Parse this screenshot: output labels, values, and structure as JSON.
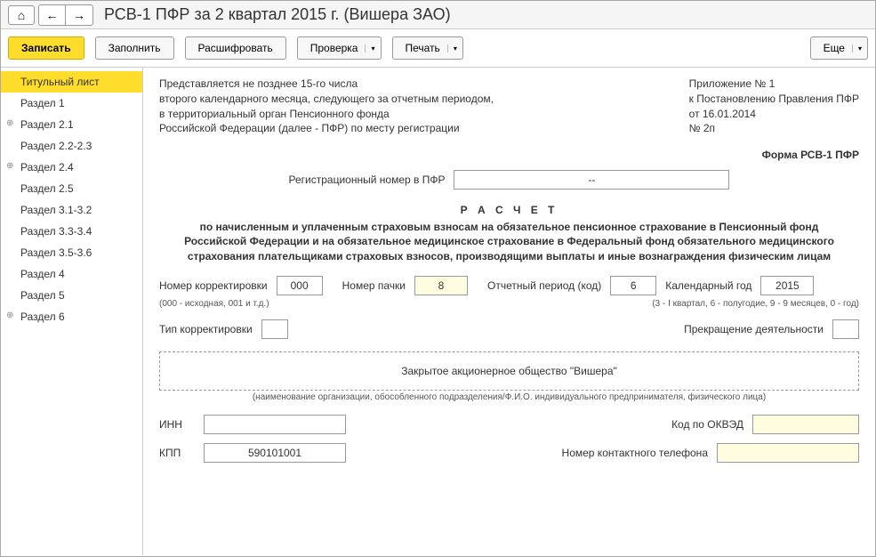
{
  "title": "РСВ-1 ПФР за 2 квартал 2015 г. (Вишера ЗАО)",
  "toolbar": {
    "save": "Записать",
    "fill": "Заполнить",
    "decode": "Расшифровать",
    "check": "Проверка",
    "print": "Печать",
    "more": "Еще"
  },
  "sidebar": [
    {
      "label": "Титульный лист",
      "active": true,
      "sub": false
    },
    {
      "label": "Раздел 1",
      "active": false,
      "sub": false
    },
    {
      "label": "Раздел 2.1",
      "active": false,
      "sub": true
    },
    {
      "label": "Раздел 2.2-2.3",
      "active": false,
      "sub": false
    },
    {
      "label": "Раздел 2.4",
      "active": false,
      "sub": true
    },
    {
      "label": "Раздел 2.5",
      "active": false,
      "sub": false
    },
    {
      "label": "Раздел 3.1-3.2",
      "active": false,
      "sub": false
    },
    {
      "label": "Раздел 3.3-3.4",
      "active": false,
      "sub": false
    },
    {
      "label": "Раздел 3.5-3.6",
      "active": false,
      "sub": false
    },
    {
      "label": "Раздел 4",
      "active": false,
      "sub": false
    },
    {
      "label": "Раздел 5",
      "active": false,
      "sub": false
    },
    {
      "label": "Раздел 6",
      "active": false,
      "sub": true
    }
  ],
  "header": {
    "left": [
      "Представляется не позднее 15-го числа",
      "второго календарного месяца, следующего за отчетным периодом,",
      "в территориальный орган Пенсионного фонда",
      "Российской Федерации (далее - ПФР) по месту регистрации"
    ],
    "right": [
      "Приложение № 1",
      "к Постановлению Правления ПФР",
      "от 16.01.2014",
      "№ 2п"
    ]
  },
  "form_code": "Форма РСВ-1 ПФР",
  "reg_label": "Регистрационный номер в ПФР",
  "reg_value": "--",
  "calc_title": "Р А С Ч Е Т",
  "calc_desc": "по начисленным и уплаченным страховым взносам на обязательное пенсионное страхование в Пенсионный фонд Российской Федерации и на обязательное медицинское страхование в Федеральный фонд обязательного медицинского страхования плательщиками страховых взносов, производящими выплаты и иные вознаграждения физическим лицам",
  "fields": {
    "corr_label": "Номер корректировки",
    "corr_value": "000",
    "corr_hint": "(000 - исходная, 001 и т.д.)",
    "pack_label": "Номер пачки",
    "pack_value": "8",
    "period_label": "Отчетный период (код)",
    "period_value": "6",
    "period_hint": "(3 - I квартал, 6 - полугодие, 9 - 9 месяцев, 0 - год)",
    "year_label": "Календарный год",
    "year_value": "2015",
    "type_label": "Тип корректировки",
    "type_value": "",
    "termination_label": "Прекращение деятельности",
    "termination_value": ""
  },
  "org": {
    "name": "Закрытое акционерное общество \"Вишера\"",
    "hint": "(наименование организации, обособленного подразделения/Ф.И.О. индивидуального предпринимателя, физического лица)"
  },
  "bottom": {
    "inn_label": "ИНН",
    "inn_value": "",
    "okved_label": "Код по ОКВЭД",
    "okved_value": "",
    "kpp_label": "КПП",
    "kpp_value": "590101001",
    "phone_label": "Номер контактного телефона",
    "phone_value": ""
  },
  "colors": {
    "accent": "#ffdd2d",
    "highlight_bg": "#fffde0",
    "border": "#999999",
    "text": "#333333"
  }
}
